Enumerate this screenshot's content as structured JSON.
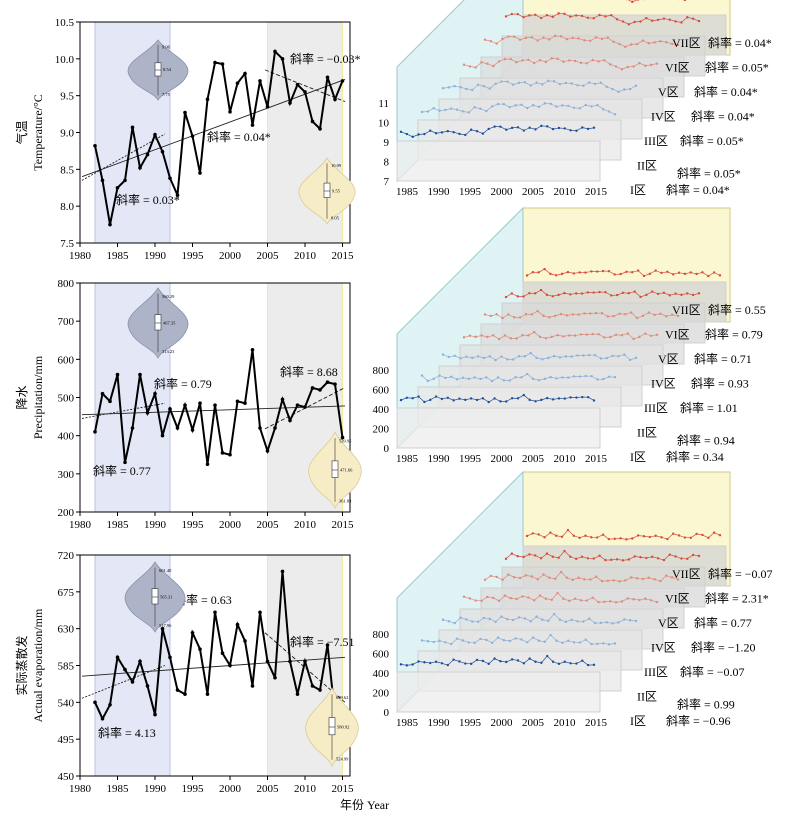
{
  "chart_data": [
    {
      "type": "line",
      "ylabel_cn": "气温",
      "ylabel_en": "Temperature/°C",
      "xlim": [
        1980,
        2016
      ],
      "ylim": [
        7.5,
        10.5
      ],
      "xticks": [
        1980,
        1985,
        1990,
        1995,
        2000,
        2005,
        2010,
        2015
      ],
      "yticks": [
        "7.5",
        "8.0",
        "8.5",
        "9.0",
        "9.5",
        "10.0",
        "10.5"
      ],
      "highlight_periods": [
        {
          "from": 1982,
          "to": 1992,
          "color": "#e4e8f6"
        },
        {
          "from": 2005,
          "to": 2015,
          "color": "#ececec"
        }
      ],
      "x": [
        1982,
        1983,
        1984,
        1985,
        1986,
        1987,
        1988,
        1989,
        1990,
        1991,
        1992,
        1993,
        1994,
        1995,
        1996,
        1997,
        1998,
        1999,
        2000,
        2001,
        2002,
        2003,
        2004,
        2005,
        2006,
        2007,
        2008,
        2009,
        2010,
        2011,
        2012,
        2013,
        2014,
        2015
      ],
      "y": [
        8.82,
        8.35,
        7.75,
        8.25,
        8.35,
        9.07,
        8.52,
        8.7,
        8.97,
        8.74,
        8.38,
        8.15,
        9.27,
        8.95,
        8.45,
        9.45,
        9.95,
        9.93,
        9.28,
        9.67,
        9.8,
        9.1,
        9.7,
        9.35,
        10.1,
        10.0,
        9.4,
        9.65,
        9.55,
        9.15,
        9.05,
        9.75,
        9.45,
        9.7
      ],
      "slope_labels": [
        {
          "text": "斜率 = 0.03*"
        },
        {
          "text": "斜率 = 0.04*"
        },
        {
          "text": "斜率 = −0.03*"
        }
      ],
      "violins": [
        {
          "max": "9.96",
          "median": "8.54",
          "min": "7.75"
        },
        {
          "max": "10.09",
          "median": "9.55",
          "min": "8.05"
        }
      ],
      "panel3d": {
        "yticks": [
          "7",
          "8",
          "9",
          "10",
          "11"
        ],
        "xticks": [
          "1985",
          "1990",
          "1995",
          "2000",
          "2005",
          "2010",
          "2015"
        ],
        "zones": [
          {
            "name": "VII区",
            "slope": "斜率 = 0.04*"
          },
          {
            "name": "VI区",
            "slope": "斜率 = 0.05*"
          },
          {
            "name": "V区",
            "slope": "斜率 = 0.04*"
          },
          {
            "name": "IV区",
            "slope": "斜率 = 0.04*"
          },
          {
            "name": "III区",
            "slope": "斜率 = 0.05*"
          },
          {
            "name": "II区",
            "slope": "斜率 = 0.05*"
          },
          {
            "name": "I区",
            "slope": "斜率 = 0.04*"
          }
        ]
      }
    },
    {
      "type": "line",
      "ylabel_cn": "降水",
      "ylabel_en": "Precipitation/mm",
      "xlim": [
        1980,
        2016
      ],
      "ylim": [
        200,
        800
      ],
      "xticks": [
        1980,
        1985,
        1990,
        1995,
        2000,
        2005,
        2010,
        2015
      ],
      "yticks": [
        "200",
        "300",
        "400",
        "500",
        "600",
        "700",
        "800"
      ],
      "highlight_periods": [
        {
          "from": 1982,
          "to": 1992,
          "color": "#e4e8f6"
        },
        {
          "from": 2005,
          "to": 2015,
          "color": "#ececec"
        }
      ],
      "x": [
        1982,
        1983,
        1984,
        1985,
        1986,
        1987,
        1988,
        1989,
        1990,
        1991,
        1992,
        1993,
        1994,
        1995,
        1996,
        1997,
        1998,
        1999,
        2000,
        2001,
        2002,
        2003,
        2004,
        2005,
        2006,
        2007,
        2008,
        2009,
        2010,
        2011,
        2012,
        2013,
        2014,
        2015
      ],
      "y": [
        410,
        510,
        490,
        560,
        330,
        420,
        560,
        460,
        510,
        400,
        470,
        420,
        480,
        415,
        485,
        325,
        480,
        355,
        350,
        490,
        485,
        625,
        420,
        360,
        420,
        495,
        440,
        480,
        475,
        525,
        520,
        540,
        535,
        395
      ],
      "slope_labels": [
        {
          "text": "斜率 = 0.77"
        },
        {
          "text": "斜率 = 0.79"
        },
        {
          "text": "斜率 = 8.68"
        }
      ],
      "violins": [
        {
          "max": "560.29",
          "median": "467.35",
          "min": "313.23"
        },
        {
          "max": "539.95",
          "median": "471.66",
          "min": "361.83"
        }
      ],
      "panel3d": {
        "yticks": [
          "0",
          "200",
          "400",
          "600",
          "800"
        ],
        "xticks": [
          "1985",
          "1990",
          "1995",
          "2000",
          "2005",
          "2010",
          "2015"
        ],
        "zones": [
          {
            "name": "VII区",
            "slope": "斜率 = 0.55"
          },
          {
            "name": "VI区",
            "slope": "斜率 = 0.79"
          },
          {
            "name": "V区",
            "slope": "斜率 = 0.71"
          },
          {
            "name": "IV区",
            "slope": "斜率 = 0.93"
          },
          {
            "name": "III区",
            "slope": "斜率 = 1.01"
          },
          {
            "name": "II区",
            "slope": "斜率 = 0.94"
          },
          {
            "name": "I区",
            "slope": "斜率 = 0.34"
          }
        ]
      }
    },
    {
      "type": "line",
      "ylabel_cn": "实际蒸散发",
      "ylabel_en": "Actual evaporation/mm",
      "xlim": [
        1980,
        2016
      ],
      "ylim": [
        450,
        720
      ],
      "xticks": [
        1980,
        1985,
        1990,
        1995,
        2000,
        2005,
        2010,
        2015
      ],
      "yticks": [
        "450",
        "495",
        "540",
        "585",
        "630",
        "675",
        "720"
      ],
      "highlight_periods": [
        {
          "from": 1982,
          "to": 1992,
          "color": "#e4e8f6"
        },
        {
          "from": 2005,
          "to": 2015,
          "color": "#ececec"
        }
      ],
      "x": [
        1982,
        1983,
        1984,
        1985,
        1986,
        1987,
        1988,
        1989,
        1990,
        1991,
        1992,
        1993,
        1994,
        1995,
        1996,
        1997,
        1998,
        1999,
        2000,
        2001,
        2002,
        2003,
        2004,
        2005,
        2006,
        2007,
        2008,
        2009,
        2010,
        2011,
        2012,
        2013,
        2014,
        2015
      ],
      "y": [
        540,
        520,
        537,
        595,
        580,
        565,
        590,
        560,
        525,
        630,
        595,
        555,
        550,
        625,
        605,
        550,
        650,
        600,
        585,
        635,
        615,
        560,
        650,
        590,
        570,
        700,
        590,
        550,
        590,
        560,
        555,
        610,
        525,
        530
      ],
      "slope_labels": [
        {
          "text": "斜率 = 4.13"
        },
        {
          "text": "斜率 = 0.63"
        },
        {
          "text": "斜率 = −7.51"
        }
      ],
      "violins": [
        {
          "max": "601.40",
          "median": "565.31",
          "min": "517.96"
        },
        {
          "max": "699.62",
          "median": "580.92",
          "min": "524.99"
        }
      ],
      "panel3d": {
        "yticks": [
          "0",
          "200",
          "400",
          "600",
          "800"
        ],
        "xticks": [
          "1985",
          "1990",
          "1995",
          "2000",
          "2005",
          "2010",
          "2015"
        ],
        "zones": [
          {
            "name": "VII区",
            "slope": "斜率 = −0.07"
          },
          {
            "name": "VI区",
            "slope": "斜率 = 2.31*"
          },
          {
            "name": "V区",
            "slope": "斜率 = 0.77"
          },
          {
            "name": "IV区",
            "slope": "斜率 = −1.20"
          },
          {
            "name": "III区",
            "slope": "斜率 = −0.07"
          },
          {
            "name": "II区",
            "slope": "斜率 = 0.99"
          },
          {
            "name": "I区",
            "slope": "斜率 = −0.96"
          }
        ]
      }
    }
  ],
  "xlabel": "年份 Year"
}
